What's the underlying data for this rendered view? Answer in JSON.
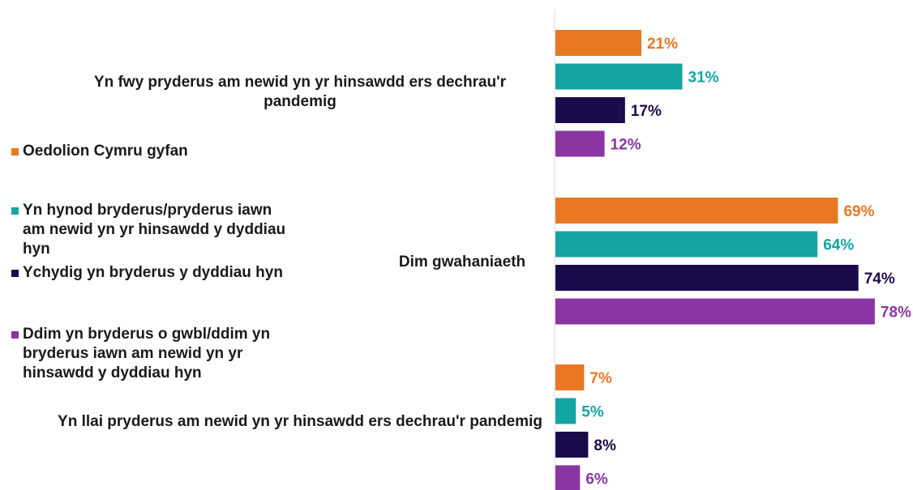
{
  "chart_data": {
    "type": "bar",
    "orientation": "horizontal",
    "categories": [
      "Yn fwy pryderus am newid yn yr hinsawdd ers dechrau'r pandemig",
      "Dim gwahaniaeth",
      "Yn llai pryderus am newid yn yr hinsawdd ers dechrau'r pandemig"
    ],
    "series": [
      {
        "name": "Oedolion Cymru gyfan",
        "color": "#E87722",
        "values": [
          21,
          69,
          7
        ],
        "labels": [
          "21%",
          "69%",
          "7%"
        ]
      },
      {
        "name": "Yn hynod bryderus/pryderus iawn am newid yn yr hinsawdd y dyddiau hyn",
        "color": "#12A5A2",
        "values": [
          31,
          64,
          5
        ],
        "labels": [
          "31%",
          "64%",
          "5%"
        ]
      },
      {
        "name": "Ychydig yn bryderus y dyddiau hyn",
        "color": "#1B0B4B",
        "values": [
          17,
          74,
          8
        ],
        "labels": [
          "17%",
          "74%",
          "8%"
        ]
      },
      {
        "name": "Ddim yn bryderus o gwbl/ddim yn bryderus iawn am newid yn yr hinsawdd y dyddiau hyn",
        "color": "#8A35A1",
        "values": [
          12,
          78,
          6
        ],
        "labels": [
          "12%",
          "78%",
          "6%"
        ]
      }
    ],
    "xlim": [
      0,
      100
    ],
    "grid": false,
    "legend_position": "left"
  }
}
